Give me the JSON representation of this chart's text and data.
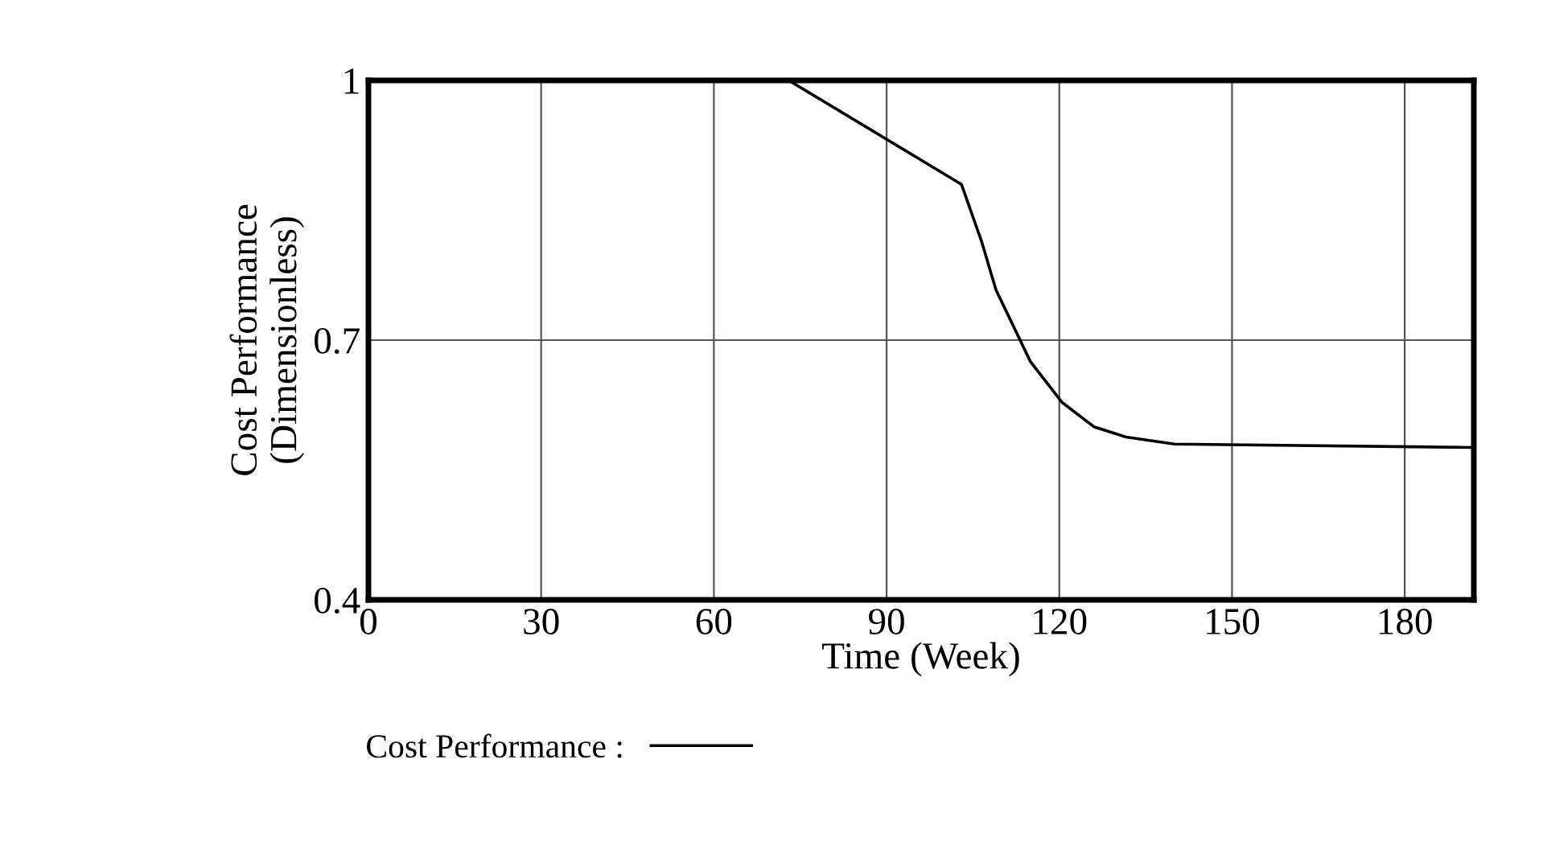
{
  "chart_data": {
    "type": "line",
    "xlabel": "Time (Week)",
    "ylabel": "Cost Performance\n(Dimensionless)",
    "x": [
      0,
      73,
      103,
      106.5,
      109,
      115,
      120.5,
      126,
      131.6,
      140,
      192
    ],
    "series": [
      {
        "name": "Cost Performance :",
        "color": "#000000",
        "values": [
          1.0,
          1.0,
          0.88,
          0.814,
          0.758,
          0.675,
          0.628,
          0.6,
          0.588,
          0.58,
          0.576
        ]
      }
    ],
    "xlim": [
      0,
      192
    ],
    "xticks": [
      0,
      30,
      60,
      90,
      120,
      150,
      180
    ],
    "ylim": [
      0.4,
      1.0
    ],
    "yticks": [
      0.4,
      0.7,
      1
    ],
    "grid": true,
    "legend": "bottom",
    "line_style": "solid"
  }
}
